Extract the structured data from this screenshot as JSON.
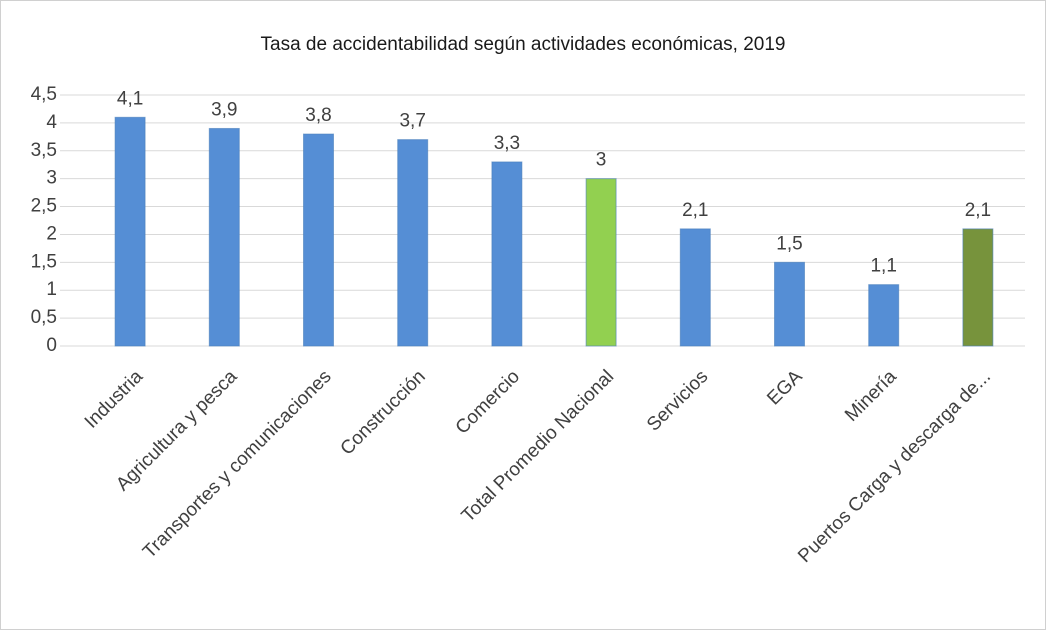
{
  "chart_data": {
    "type": "bar",
    "title": "Tasa de accidentabilidad según actividades económicas, 2019",
    "categories": [
      "Industria",
      "Agricultura y pesca",
      "Transportes y comunicaciones",
      "Construcción",
      "Comercio",
      "Total Promedio Nacional",
      "Servicios",
      "EGA",
      "Minería",
      "Puertos Carga y descarga de..."
    ],
    "values": [
      4.1,
      3.9,
      3.8,
      3.7,
      3.3,
      3,
      2.1,
      1.5,
      1.1,
      2.1
    ],
    "value_labels": [
      "4,1",
      "3,9",
      "3,8",
      "3,7",
      "3,3",
      "3",
      "2,1",
      "1,5",
      "1,1",
      "2,1"
    ],
    "colors": [
      "#558ed5",
      "#558ed5",
      "#558ed5",
      "#558ed5",
      "#558ed5",
      "#92d050",
      "#558ed5",
      "#558ed5",
      "#558ed5",
      "#77933c"
    ],
    "ylim": [
      0,
      4.5
    ],
    "yticks": [
      0,
      {
        "value": 0.5,
        "label": "0,5"
      },
      1,
      {
        "value": 1.5,
        "label": "1,5"
      },
      2,
      {
        "value": 2.5,
        "label": "2,5"
      },
      3,
      {
        "value": 3.5,
        "label": "3,5"
      },
      4,
      {
        "value": 4.5,
        "label": "4,5"
      }
    ],
    "grid": true
  }
}
